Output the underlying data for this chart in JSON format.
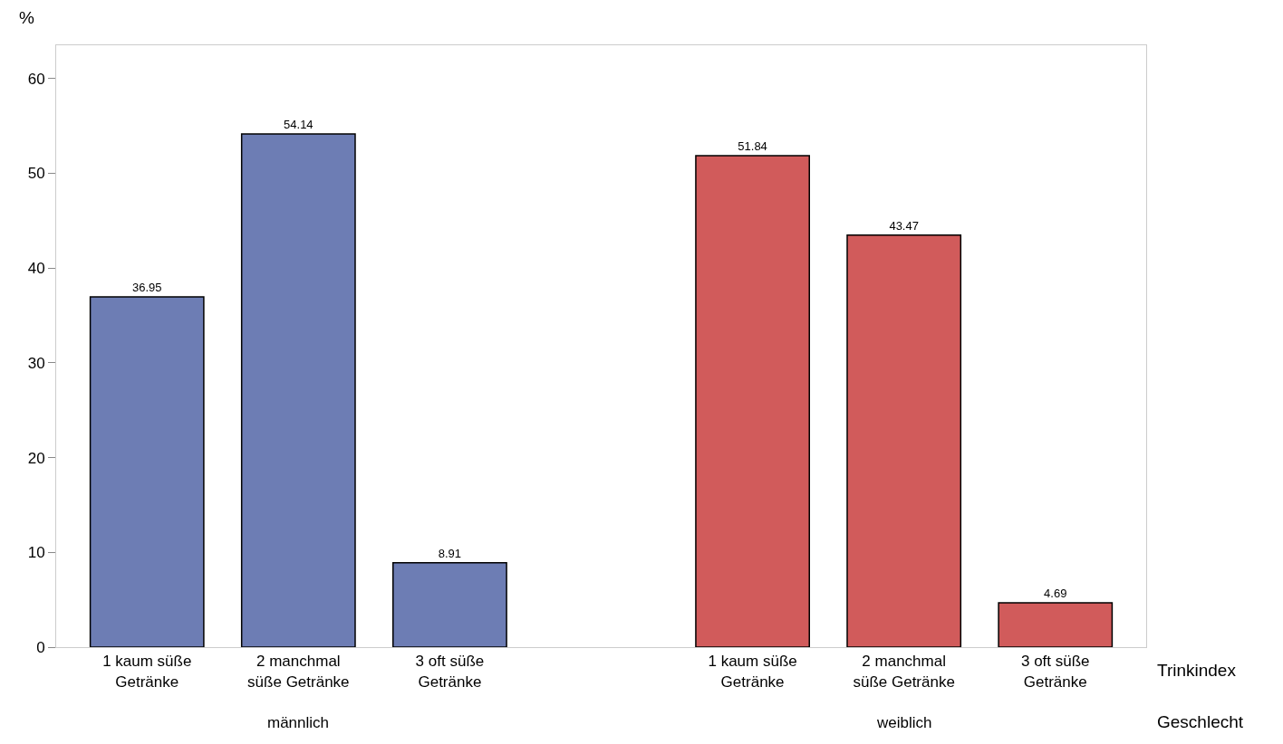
{
  "chart_data": {
    "type": "bar",
    "ylabel": "%",
    "xlabel": "Trinkindex",
    "annotations": [
      "männlich",
      "weiblich",
      "Geschlecht"
    ],
    "categories": [
      "1 kaum süße Getränke",
      "2 manchmal süße Getränke",
      "3 oft süße Getränke",
      null,
      "1 kaum süße Getränke",
      "2 manchmal süße Getränke",
      "3 oft süße Getränke"
    ],
    "series": [
      {
        "color": "#6d7db4",
        "values": [
          36.95,
          54.14,
          8.91,
          null,
          null,
          null,
          null
        ]
      },
      {
        "color": "#d15b5b",
        "values": [
          null,
          null,
          null,
          null,
          51.84,
          43.47,
          4.69
        ]
      }
    ],
    "ylim": [
      0,
      63.5
    ],
    "yticks": [
      0,
      10,
      20,
      30,
      40,
      50,
      60
    ],
    "grid": false,
    "legend": false,
    "data_labels": true
  }
}
